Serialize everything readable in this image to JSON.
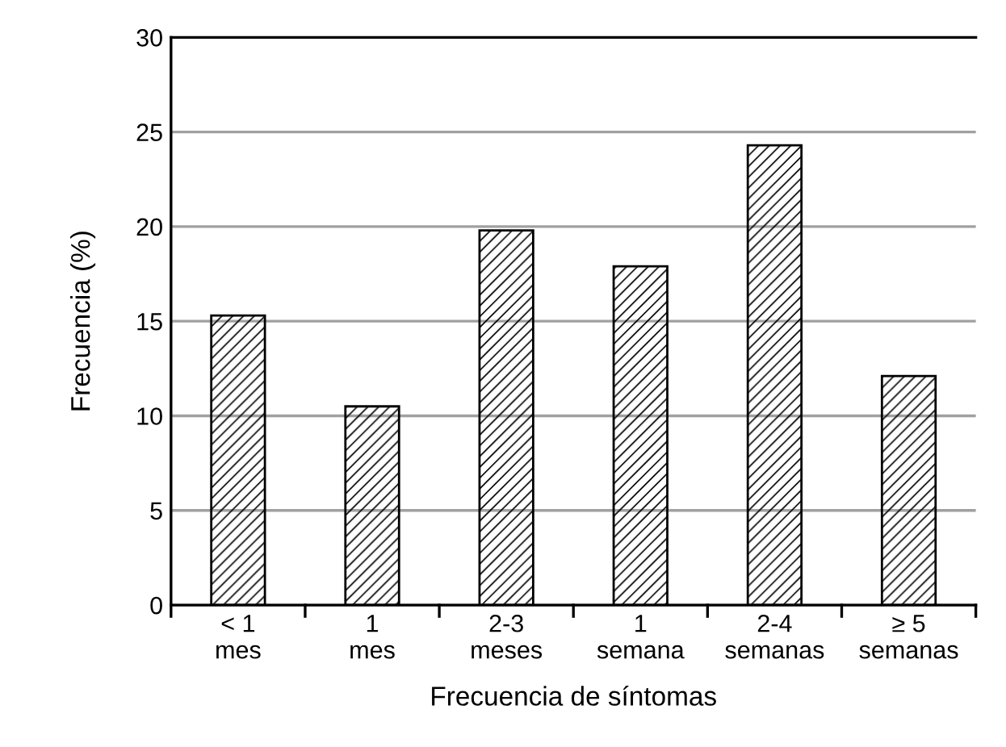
{
  "chart_data": {
    "type": "bar",
    "xlabel": "Frecuencia de síntomas",
    "ylabel": "Frecuencia (%)",
    "categories": [
      "< 1\nmes",
      "1\nmes",
      "2-3\nmeses",
      "1\nsemana",
      "2-4\nsemanas",
      "≥ 5\nsemanas"
    ],
    "values": [
      15.3,
      10.5,
      19.8,
      17.9,
      24.3,
      12.1
    ],
    "color": "#000000",
    "ylim": [
      0,
      30
    ],
    "yticks": [
      0,
      5,
      10,
      15,
      20,
      25,
      30
    ],
    "grid": "y",
    "legend": false
  }
}
